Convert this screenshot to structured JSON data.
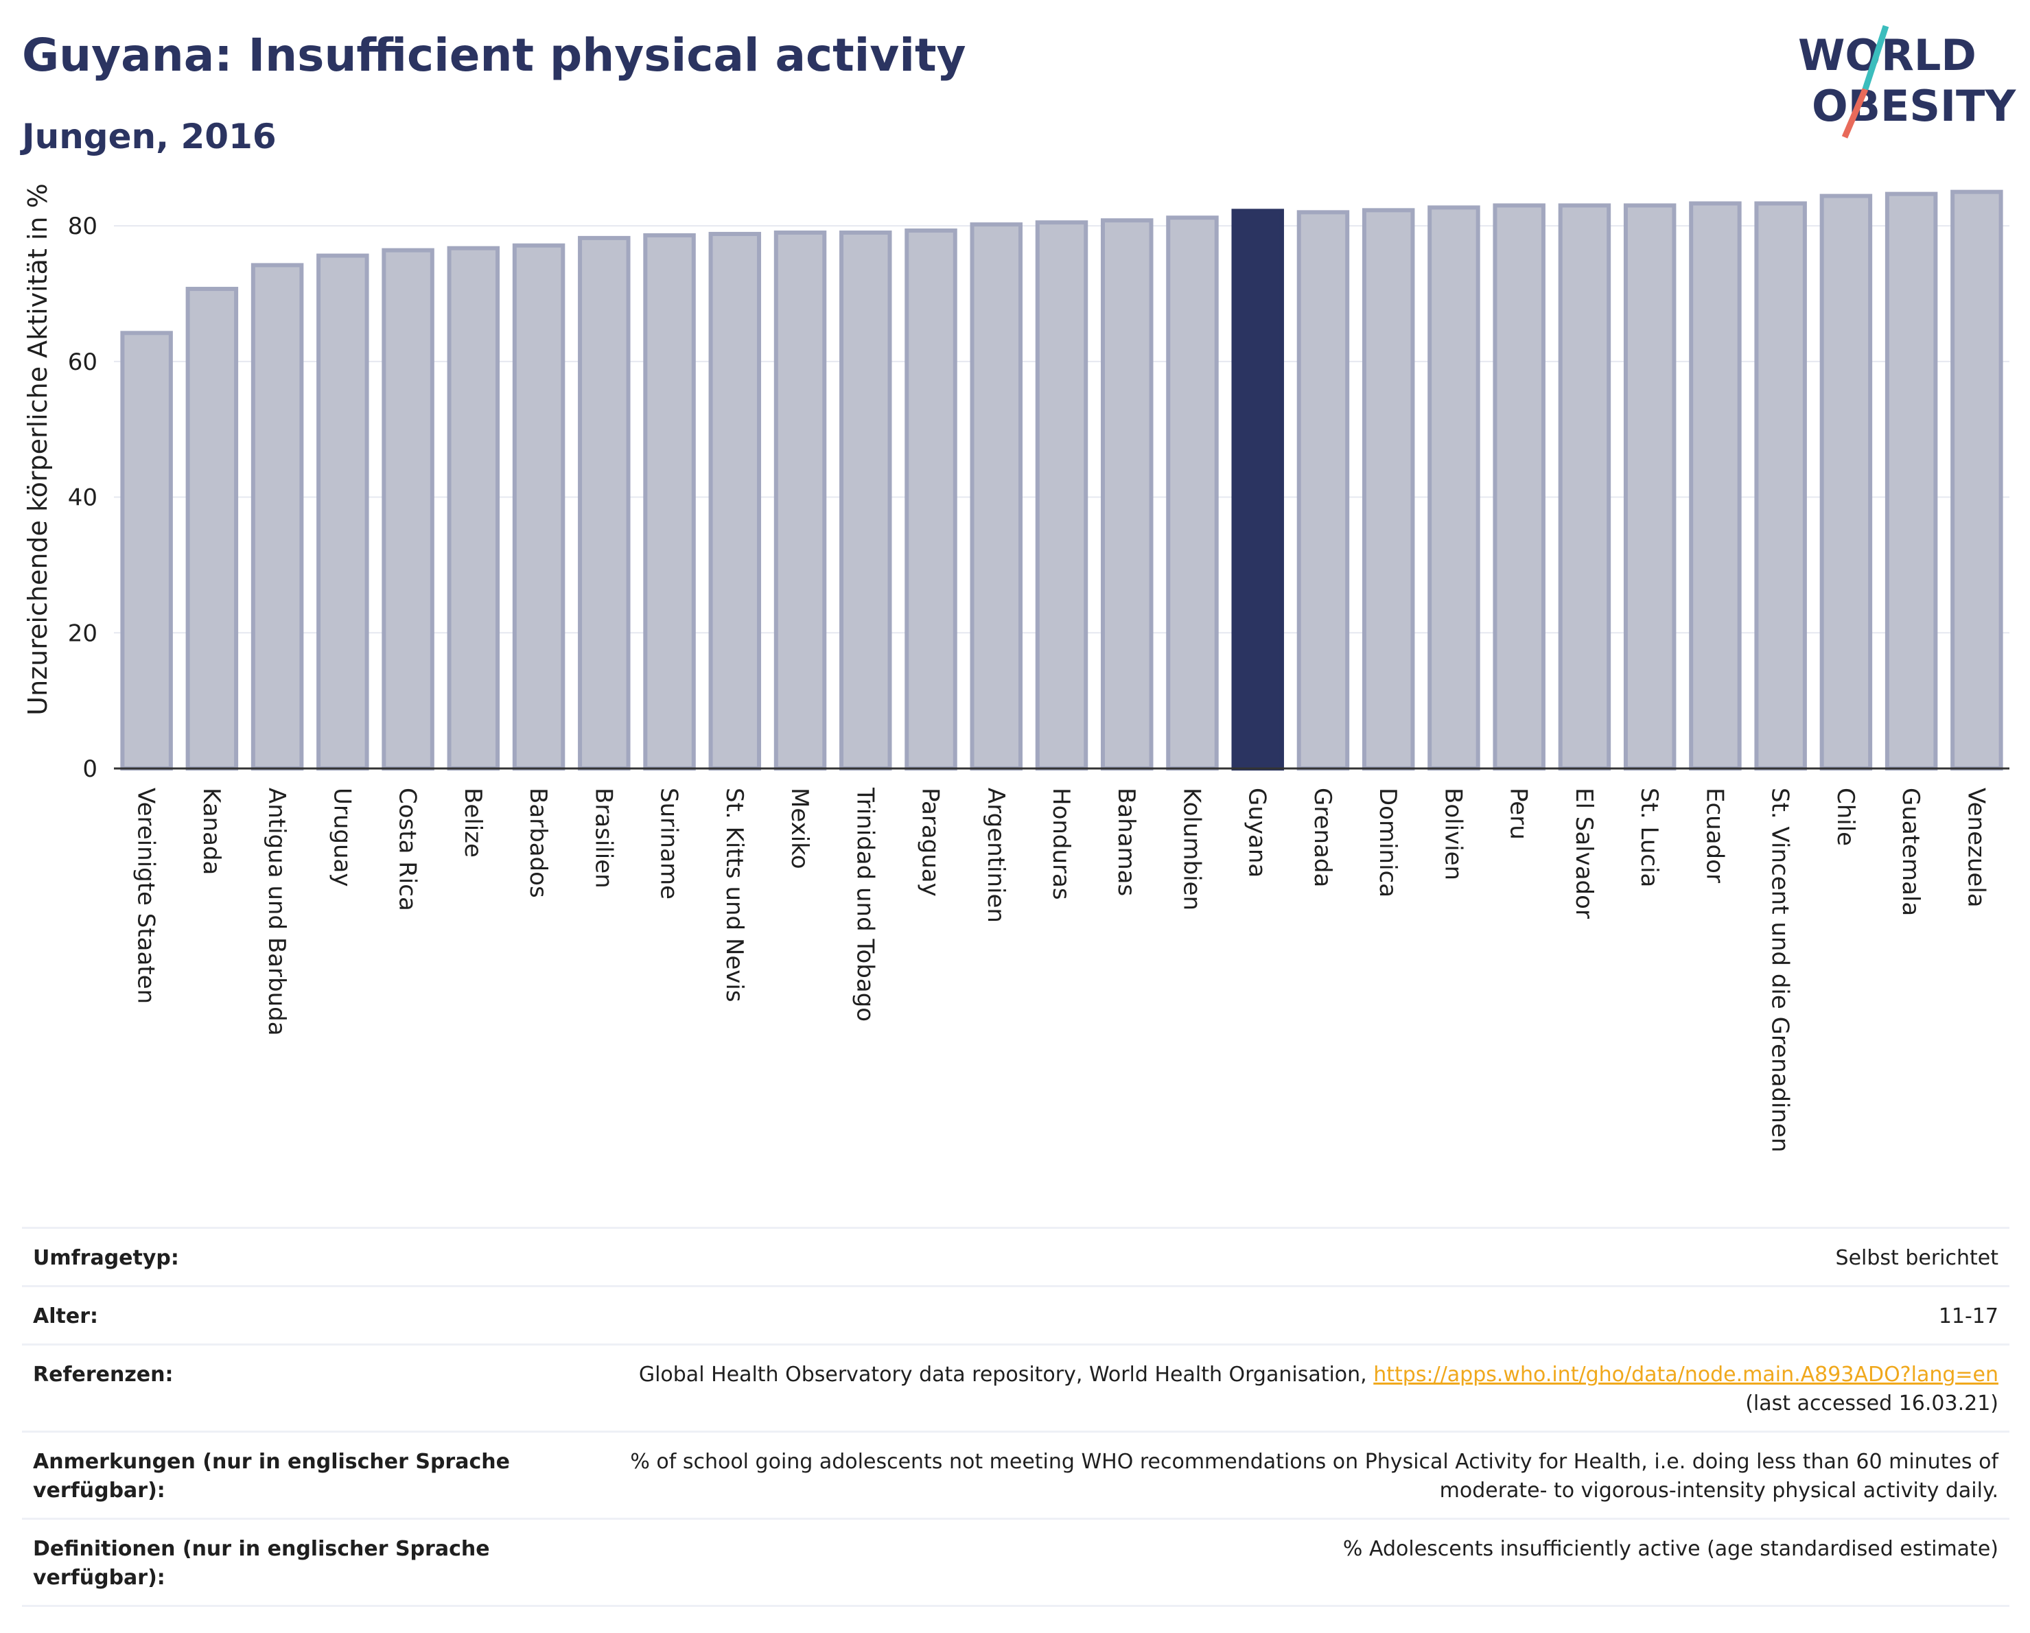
{
  "header": {
    "title": "Guyana: Insufficient physical activity",
    "subtitle": "Jungen, 2016"
  },
  "logo": {
    "line1": "WORLD",
    "line2": "OBESITY"
  },
  "chart_data": {
    "type": "bar",
    "ylabel": "Unzureichende körperliche Aktivität in %",
    "xlabel": "",
    "ylim": [
      0,
      88
    ],
    "yticks": [
      0,
      20,
      40,
      60,
      80
    ],
    "grid": true,
    "highlight": "Guyana",
    "colors": {
      "bar": "#bec1ce",
      "bar_border": "#a2a7bf",
      "highlight": "#2b3461",
      "grid": "#e6e8f0"
    },
    "categories": [
      "Vereinigte Staaten",
      "Kanada",
      "Antigua und Barbuda",
      "Uruguay",
      "Costa Rica",
      "Belize",
      "Barbados",
      "Brasilien",
      "Suriname",
      "St. Kitts und Nevis",
      "Mexiko",
      "Trinidad und Tobago",
      "Paraguay",
      "Argentinien",
      "Honduras",
      "Bahamas",
      "Kolumbien",
      "Guyana",
      "Grenada",
      "Dominica",
      "Bolivien",
      "Peru",
      "El Salvador",
      "St. Lucia",
      "Ecuador",
      "St. Vincent und die Grenadinen",
      "Chile",
      "Guatemala",
      "Venezuela"
    ],
    "values": [
      64.2,
      70.7,
      74.2,
      75.6,
      76.4,
      76.7,
      77.1,
      78.2,
      78.6,
      78.8,
      79.0,
      79.0,
      79.3,
      80.2,
      80.5,
      80.8,
      81.2,
      82.2,
      82.0,
      82.3,
      82.7,
      83.0,
      83.0,
      83.0,
      83.3,
      83.3,
      84.4,
      84.7,
      85.0
    ]
  },
  "meta": [
    {
      "label": "Umfragetyp:",
      "value": "Selbst berichtet"
    },
    {
      "label": "Alter:",
      "value": "11-17"
    },
    {
      "label": "Referenzen:",
      "value": "Global Health Observatory data repository, World Health Organisation,",
      "link": "https://apps.who.int/gho/data/node.main.A893ADO?lang=en",
      "value2": "(last accessed 16.03.21)"
    },
    {
      "label": "Anmerkungen (nur in englischer Sprache verfügbar):",
      "value": "% of school going adolescents not meeting WHO recommendations on Physical Activity for Health, i.e. doing less than 60 minutes of moderate- to vigorous-intensity physical activity daily."
    },
    {
      "label": "Definitionen (nur in englischer Sprache verfügbar):",
      "value": "% Adolescents insufficiently active (age standardised estimate)"
    }
  ]
}
